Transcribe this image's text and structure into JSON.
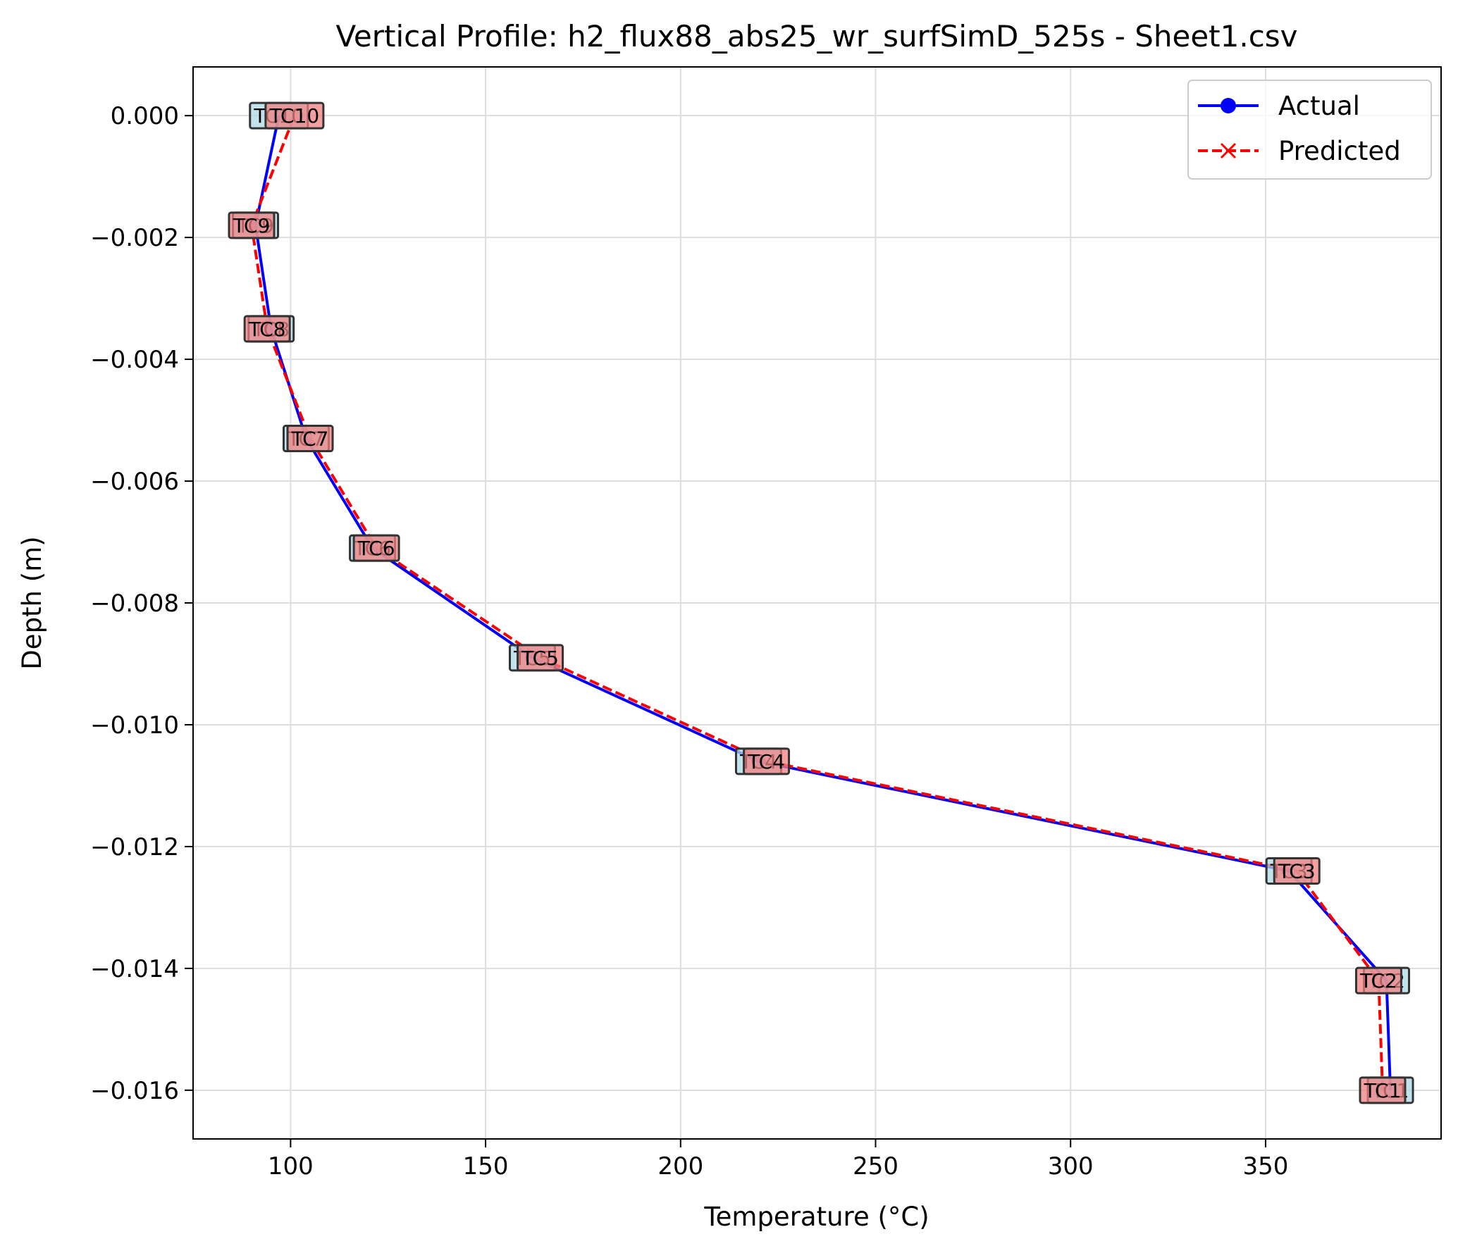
{
  "chart_data": {
    "type": "line",
    "title": "Vertical Profile: h2_flux88_abs25_wr_surfSimD_525s - Sheet1.csv",
    "xlabel": "Temperature (°C)",
    "ylabel": "Depth (m)",
    "xlim": [
      75,
      395
    ],
    "ylim": [
      -0.0168,
      0.0008
    ],
    "xticks": [
      100,
      150,
      200,
      250,
      300,
      350
    ],
    "xtick_labels": [
      "100",
      "150",
      "200",
      "250",
      "300",
      "350"
    ],
    "yticks": [
      0.0,
      -0.002,
      -0.004,
      -0.006,
      -0.008,
      -0.01,
      -0.012,
      -0.014,
      -0.016
    ],
    "ytick_labels": [
      "0.000",
      "−0.002",
      "−0.004",
      "−0.006",
      "−0.008",
      "−0.010",
      "−0.012",
      "−0.014",
      "−0.016"
    ],
    "grid": true,
    "legend_position": "top-right",
    "sensor_labels": [
      "TC1",
      "TC2",
      "TC3",
      "TC4",
      "TC5",
      "TC6",
      "TC7",
      "TC8",
      "TC9",
      "TC10"
    ],
    "depths": [
      -0.016,
      -0.0142,
      -0.0124,
      -0.0106,
      -0.0089,
      -0.0071,
      -0.0053,
      -0.0035,
      -0.0018,
      0.0
    ],
    "series": [
      {
        "name": "Actual",
        "color": "#0000ff",
        "linestyle": "solid",
        "marker": "circle",
        "values": [
          382,
          381,
          356,
          220,
          162,
          121,
          104,
          95,
          91,
          97
        ]
      },
      {
        "name": "Predicted",
        "color": "#ff0000",
        "linestyle": "dashed",
        "marker": "x",
        "values": [
          380,
          379,
          358,
          222,
          164,
          122,
          105,
          94,
          90,
          101
        ]
      }
    ]
  }
}
